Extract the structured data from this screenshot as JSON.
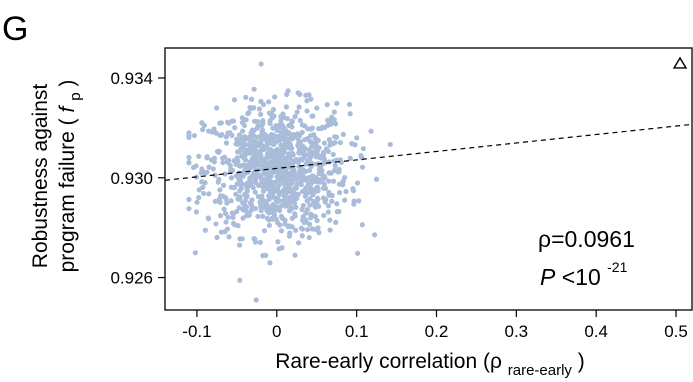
{
  "panel_label": "G",
  "chart_data": {
    "type": "scatter",
    "title": "",
    "xlabel": {
      "main": "Rare-early correlation (ρ",
      "sub": "rare-early",
      "close": ")"
    },
    "ylabel": {
      "line1": "Robustness against",
      "line2_main": "program failure (",
      "line2_italic": "f",
      "line2_sub": "p",
      "line2_close": ")"
    },
    "xlim": [
      -0.14,
      0.52
    ],
    "ylim": [
      0.9247,
      0.9352
    ],
    "xticks": [
      -0.1,
      0.0,
      0.1,
      0.2,
      0.3,
      0.4,
      0.5
    ],
    "xtick_labels": [
      "-0.1",
      "0",
      "0.1",
      "0.2",
      "0.3",
      "0.4",
      "0.5"
    ],
    "yticks": [
      0.926,
      0.93,
      0.934
    ],
    "ytick_labels": [
      "0.926",
      "0.930",
      "0.934"
    ],
    "point_color": "#a9bcd9",
    "cloud": {
      "n_points": 1000,
      "x_center": 0.0,
      "x_sd": 0.045,
      "y_center": 0.9303,
      "y_sd": 0.0013,
      "x_range": [
        -0.11,
        0.155
      ],
      "y_range": [
        0.9251,
        0.9347
      ]
    },
    "outlier": {
      "x": 0.505,
      "y": 0.9346,
      "marker": "open-triangle"
    },
    "trend_line": {
      "style": "dashed",
      "x": [
        -0.14,
        0.52
      ],
      "y": [
        0.9299,
        0.93214
      ]
    },
    "annotations": {
      "rho": "ρ=0.0961",
      "p_main": "P",
      "p_rest": "<10",
      "p_exp": "-21"
    }
  }
}
